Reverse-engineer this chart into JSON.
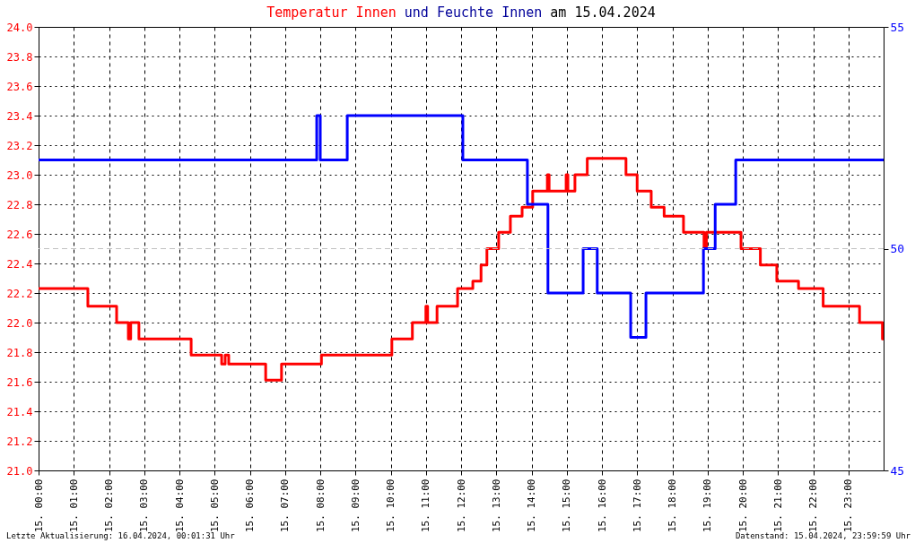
{
  "chart_data": {
    "type": "step",
    "title": "Temperatur Innen und Feuchte Innen am 15.04.2024",
    "annotations": [
      "Letzte Aktualisierung: 16.04.2024, 00:01:31 Uhr",
      "Datenstand: 15.04.2024, 23:59:59 Uhr"
    ],
    "xlim": [
      "2024-04-15T00:00",
      "2024-04-16T00:00"
    ],
    "xticks": [
      {
        "value": "2024-04-15T00:00",
        "label": "15. 00:00"
      },
      {
        "value": "2024-04-15T01:00",
        "label": "15. 01:00"
      },
      {
        "value": "2024-04-15T02:00",
        "label": "15. 02:00"
      },
      {
        "value": "2024-04-15T03:00",
        "label": "15. 03:00"
      },
      {
        "value": "2024-04-15T04:00",
        "label": "15. 04:00"
      },
      {
        "value": "2024-04-15T05:00",
        "label": "15. 05:00"
      },
      {
        "value": "2024-04-15T06:00",
        "label": "15. 06:00"
      },
      {
        "value": "2024-04-15T07:00",
        "label": "15. 07:00"
      },
      {
        "value": "2024-04-15T08:00",
        "label": "15. 08:00"
      },
      {
        "value": "2024-04-15T09:00",
        "label": "15. 09:00"
      },
      {
        "value": "2024-04-15T10:00",
        "label": "15. 10:00"
      },
      {
        "value": "2024-04-15T11:00",
        "label": "15. 11:00"
      },
      {
        "value": "2024-04-15T12:00",
        "label": "15. 12:00"
      },
      {
        "value": "2024-04-15T13:00",
        "label": "15. 13:00"
      },
      {
        "value": "2024-04-15T14:00",
        "label": "15. 14:00"
      },
      {
        "value": "2024-04-15T15:00",
        "label": "15. 15:00"
      },
      {
        "value": "2024-04-15T16:00",
        "label": "15. 16:00"
      },
      {
        "value": "2024-04-15T17:00",
        "label": "15. 17:00"
      },
      {
        "value": "2024-04-15T18:00",
        "label": "15. 18:00"
      },
      {
        "value": "2024-04-15T19:00",
        "label": "15. 19:00"
      },
      {
        "value": "2024-04-15T20:00",
        "label": "15. 20:00"
      },
      {
        "value": "2024-04-15T21:00",
        "label": "15. 21:00"
      },
      {
        "value": "2024-04-15T22:00",
        "label": "15. 22:00"
      },
      {
        "value": "2024-04-15T23:00",
        "label": "15. 23:00"
      }
    ],
    "ylim": [
      21.0,
      24.0
    ],
    "yticks": [
      {
        "value": 21,
        "label": "21.0"
      },
      21.2,
      21.4,
      21.6,
      21.8,
      {
        "value": 22,
        "label": "22.0"
      },
      22.2,
      22.4,
      22.6,
      22.8,
      {
        "value": 23,
        "label": "23.0"
      },
      23.2,
      23.4,
      23.6,
      23.8,
      {
        "value": 24,
        "label": "24.0"
      }
    ],
    "y2lim": [
      45,
      55
    ],
    "y2ticks": [
      45,
      50,
      55
    ],
    "ref_lines": [
      {
        "axis": "y2",
        "value": 50,
        "color": "#c0c0c0",
        "line_style": "dashed"
      }
    ],
    "grid": true,
    "line_style": "solid",
    "series": [
      {
        "color": "#ff0000",
        "x": [
          "2024-04-15T00:00",
          "2024-04-15T01:24",
          "2024-04-15T02:13",
          "2024-04-15T02:33",
          "2024-04-15T02:37",
          "2024-04-15T02:51",
          "2024-04-15T04:20",
          "2024-04-15T05:12",
          "2024-04-15T05:18",
          "2024-04-15T05:24",
          "2024-04-15T06:27",
          "2024-04-15T06:54",
          "2024-04-15T08:02",
          "2024-04-15T10:02",
          "2024-04-15T10:37",
          "2024-04-15T11:00",
          "2024-04-15T11:03",
          "2024-04-15T11:19",
          "2024-04-15T11:54",
          "2024-04-15T12:20",
          "2024-04-15T12:34",
          "2024-04-15T12:44",
          "2024-04-15T13:04",
          "2024-04-15T13:24",
          "2024-04-15T13:44",
          "2024-04-15T14:02",
          "2024-04-15T14:27",
          "2024-04-15T14:30",
          "2024-04-15T14:59",
          "2024-04-15T15:02",
          "2024-04-15T15:14",
          "2024-04-15T15:35",
          "2024-04-15T16:41",
          "2024-04-15T17:00",
          "2024-04-15T17:24",
          "2024-04-15T17:46",
          "2024-04-15T18:19",
          "2024-04-15T18:54",
          "2024-04-15T18:58",
          "2024-04-15T19:57",
          "2024-04-15T20:30",
          "2024-04-15T20:58",
          "2024-04-15T21:35",
          "2024-04-15T22:17",
          "2024-04-15T23:19",
          "2024-04-15T23:58",
          "2024-04-16T00:00"
        ],
        "values": [
          22.23,
          22.11,
          22.0,
          21.89,
          22.0,
          21.89,
          21.78,
          21.72,
          21.78,
          21.72,
          21.61,
          21.72,
          21.78,
          21.89,
          22.0,
          22.11,
          22.0,
          22.11,
          22.23,
          22.28,
          22.39,
          22.5,
          22.61,
          22.72,
          22.78,
          22.89,
          23.0,
          22.89,
          23.0,
          22.89,
          23.0,
          23.11,
          23.0,
          22.89,
          22.78,
          22.72,
          22.61,
          22.5,
          22.61,
          22.5,
          22.39,
          22.28,
          22.23,
          22.11,
          22.0,
          21.89,
          21.89
        ]
      },
      {
        "color": "#0000ff",
        "axis": "y2",
        "x": [
          "2024-04-15T00:00",
          "2024-04-15T07:54",
          "2024-04-15T08:00",
          "2024-04-15T08:46",
          "2024-04-15T12:03",
          "2024-04-15T13:53",
          "2024-04-15T14:28",
          "2024-04-15T15:28",
          "2024-04-15T15:52",
          "2024-04-15T16:49",
          "2024-04-15T17:15",
          "2024-04-15T18:53",
          "2024-04-15T19:13",
          "2024-04-15T19:48",
          "2024-04-16T00:00"
        ],
        "values": [
          52,
          53,
          52,
          53,
          52,
          51,
          49,
          50,
          49,
          48,
          49,
          50,
          51,
          52,
          52
        ]
      }
    ]
  }
}
